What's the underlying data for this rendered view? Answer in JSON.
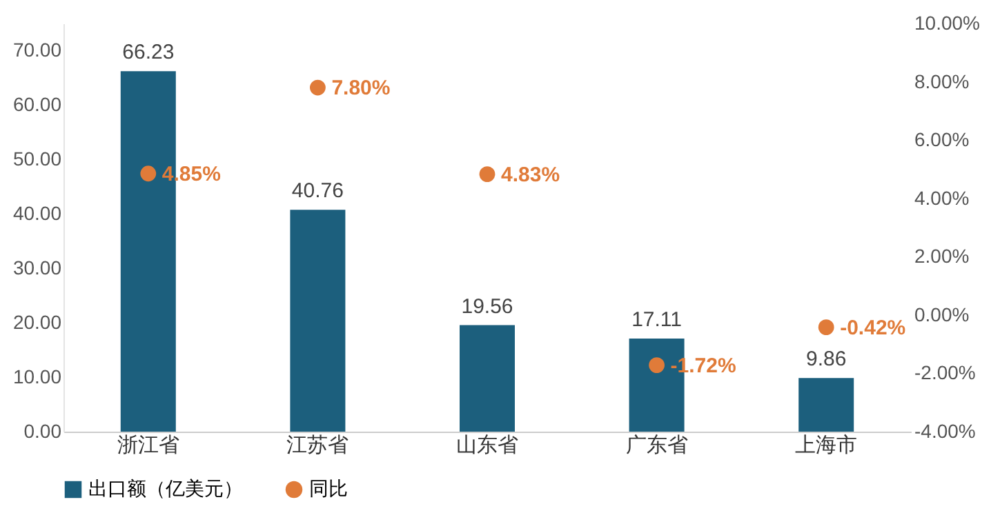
{
  "chart_data": {
    "type": "bar",
    "categories": [
      "浙江省",
      "江苏省",
      "山东省",
      "广东省",
      "上海市"
    ],
    "series": [
      {
        "name": "出口额（亿美元）",
        "color": "#1c5f7d",
        "values": [
          66.23,
          40.76,
          19.56,
          17.11,
          9.86
        ],
        "value_labels": [
          "66.23",
          "40.76",
          "19.56",
          "17.11",
          "9.86"
        ]
      },
      {
        "name": "同比",
        "type": "scatter",
        "axis": "y2",
        "color": "#e07b39",
        "values": [
          4.85,
          7.8,
          4.83,
          -1.72,
          -0.42
        ],
        "value_labels": [
          "4.85%",
          "7.80%",
          "4.83%",
          "-1.72%",
          "-0.42%"
        ]
      }
    ],
    "ylim": [
      0,
      75
    ],
    "yticks": [
      {
        "value": 0,
        "label": "0.00"
      },
      {
        "value": 10,
        "label": "10.00"
      },
      {
        "value": 20,
        "label": "20.00"
      },
      {
        "value": 30,
        "label": "30.00"
      },
      {
        "value": 40,
        "label": "40.00"
      },
      {
        "value": 50,
        "label": "50.00"
      },
      {
        "value": 60,
        "label": "60.00"
      },
      {
        "value": 70,
        "label": "70.00"
      }
    ],
    "y2lim": [
      -4,
      10
    ],
    "y2ticks": [
      {
        "value": -4,
        "label": "-4.00%"
      },
      {
        "value": -2,
        "label": "-2.00%"
      },
      {
        "value": 0,
        "label": "0.00%"
      },
      {
        "value": 2,
        "label": "2.00%"
      },
      {
        "value": 4,
        "label": "4.00%"
      },
      {
        "value": 6,
        "label": "6.00%"
      },
      {
        "value": 8,
        "label": "8.00%"
      },
      {
        "value": 10,
        "label": "10.00%"
      }
    ],
    "legend": "bottom",
    "marker": "circle",
    "grid": false
  }
}
